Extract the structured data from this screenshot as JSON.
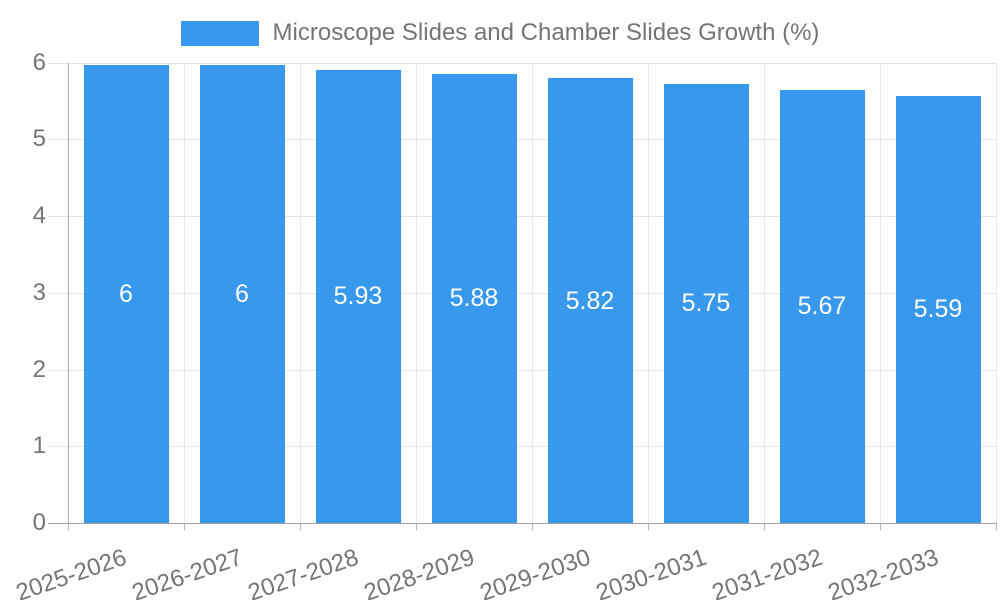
{
  "chart_data": {
    "type": "bar",
    "title": "Microscope Slides and Chamber Slides Growth (%)",
    "categories": [
      "2025-2026",
      "2026-2027",
      "2027-2028",
      "2028-2029",
      "2029-2030",
      "2030-2031",
      "2031-2032",
      "2032-2033"
    ],
    "values": [
      6,
      6,
      5.93,
      5.88,
      5.82,
      5.75,
      5.67,
      5.59
    ],
    "value_labels": [
      "6",
      "6",
      "5.93",
      "5.88",
      "5.82",
      "5.75",
      "5.67",
      "5.59"
    ],
    "xlabel": "",
    "ylabel": "",
    "ylim": [
      0,
      6
    ],
    "y_tick_labels": [
      "0",
      "1",
      "2",
      "3",
      "4",
      "5",
      "6"
    ],
    "grid": true,
    "legend_position": "top",
    "value_labels_position": "inside-center",
    "colors": {
      "bar": "#3898ec",
      "text": "#757575",
      "value_label": "#ffffff",
      "gridline": "#e6e6e6",
      "y_axis_line": "#ababab",
      "x_axis_line": "#a0a0a0",
      "x_tick": "#b5b5b5",
      "background": "#ffffff"
    }
  }
}
